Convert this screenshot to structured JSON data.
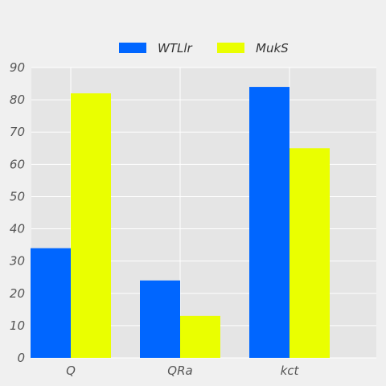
{
  "chart_data": {
    "type": "bar",
    "categories": [
      "Q",
      "QRa",
      "kct"
    ],
    "series": [
      {
        "name": "WTLlr",
        "values": [
          34,
          24,
          84
        ],
        "color": "#0066ff"
      },
      {
        "name": "MukS",
        "values": [
          82,
          13,
          65
        ],
        "color": "#eaff00"
      }
    ],
    "title": "",
    "xlabel": "",
    "ylabel": "",
    "ylim": [
      0,
      90
    ],
    "yticks": [
      0,
      10,
      20,
      30,
      40,
      50,
      60,
      70,
      80,
      90
    ],
    "grid": true,
    "legend_position": "top-center",
    "plot_background": "#e5e5e5",
    "grid_color": "#ffffff"
  }
}
